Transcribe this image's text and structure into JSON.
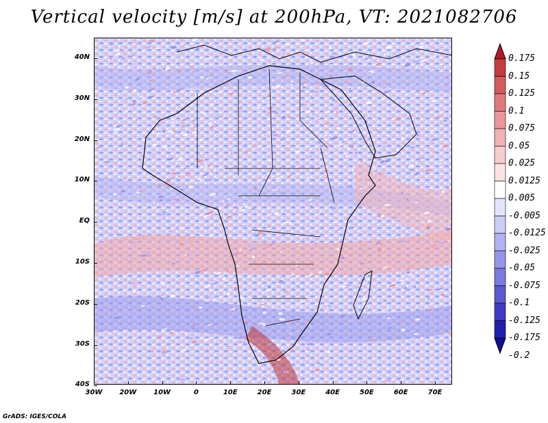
{
  "title": "Vertical velocity [m/s] at 200hPa, VT: 2021082706",
  "credit": "GrADS: IGES/COLA",
  "map": {
    "lat_labels": [
      "40N",
      "30N",
      "20N",
      "10N",
      "EQ",
      "10S",
      "20S",
      "30S",
      "40S"
    ],
    "lon_labels": [
      "30W",
      "20W",
      "10W",
      "0",
      "10E",
      "20E",
      "30E",
      "40E",
      "50E",
      "60E",
      "70E"
    ],
    "lat_range": [
      -40,
      45
    ],
    "lon_range": [
      -30,
      75
    ]
  },
  "colorbar": {
    "labels": [
      "0.175",
      "0.15",
      "0.125",
      "0.1",
      "0.075",
      "0.05",
      "0.025",
      "0.0125",
      "0.005",
      "-0.005",
      "-0.0125",
      "-0.025",
      "-0.05",
      "-0.075",
      "-0.1",
      "-0.125",
      "-0.175",
      "-0.2"
    ],
    "colors": [
      "#b2182b",
      "#c43c3c",
      "#d55a5a",
      "#e07a7a",
      "#e99696",
      "#f1b2b2",
      "#f6cccc",
      "#fbe3e3",
      "#ffffff",
      "#e3e3fb",
      "#ccccf6",
      "#b2b2f1",
      "#9696e9",
      "#7a7ae0",
      "#5a5ad5",
      "#3c3cc4",
      "#2020b0",
      "#10109a"
    ]
  }
}
